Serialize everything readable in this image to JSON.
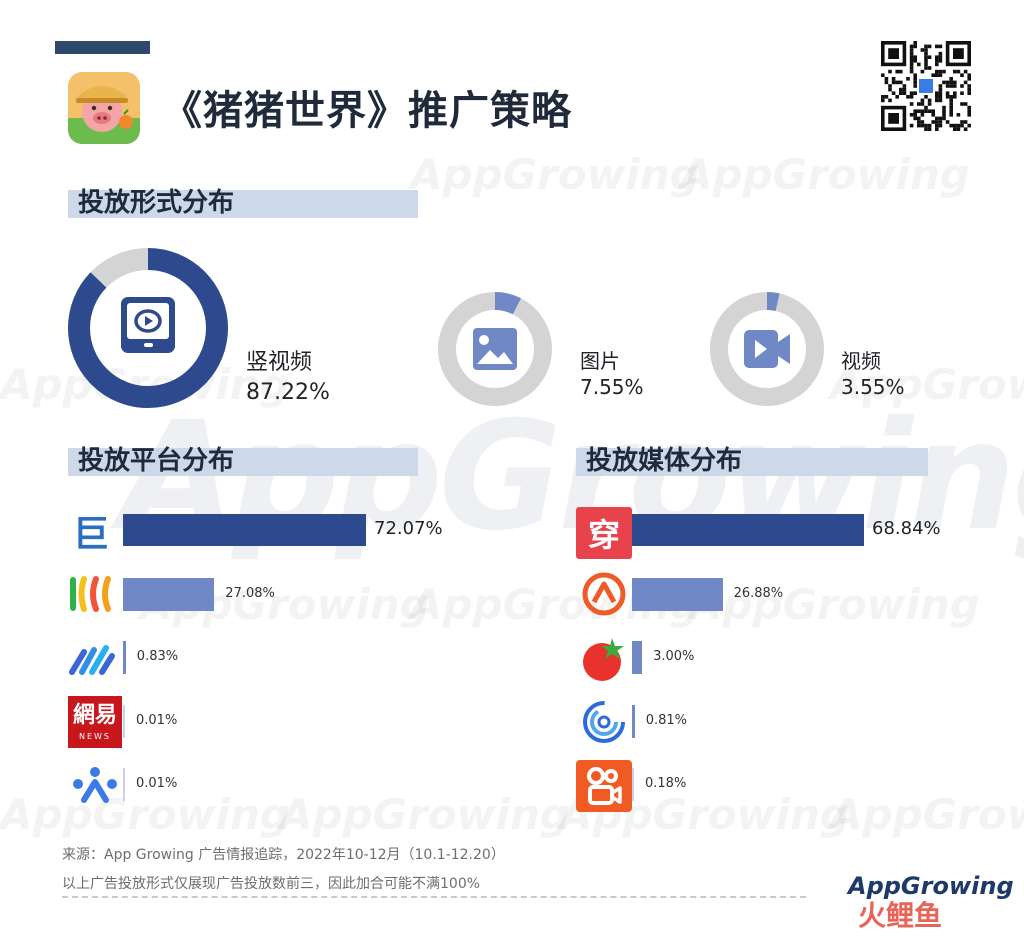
{
  "title": "《猪猪世界》推广策略",
  "watermark": "AppGrowing",
  "colors": {
    "dark_blue": "#2d4a8f",
    "light_blue": "#7089c6",
    "ring_grey": "#d4d4d4",
    "section_bar": "#cdd9e8"
  },
  "sections": {
    "format": "投放形式分布",
    "platform": "投放平台分布",
    "media": "投放媒体分布"
  },
  "chart_data": [
    {
      "type": "pie",
      "title": "投放形式分布",
      "categories": [
        "竖视频",
        "图片",
        "视频"
      ],
      "values": [
        87.22,
        7.55,
        3.55
      ],
      "labels": [
        "87.22%",
        "7.55%",
        "3.55%"
      ],
      "icons": [
        "tablet-video-icon",
        "image-icon",
        "video-camera-icon"
      ]
    },
    {
      "type": "bar",
      "orientation": "horizontal",
      "title": "投放平台分布",
      "categories": [
        "巨量引擎",
        "腾讯广告",
        "百度营销",
        "网易",
        "vivo"
      ],
      "values": [
        72.07,
        27.08,
        0.83,
        0.01,
        0.01
      ],
      "labels": [
        "72.07%",
        "27.08%",
        "0.83%",
        "0.01%",
        "0.01%"
      ],
      "icons": [
        "ocean-engine-logo",
        "tencent-ads-logo",
        "baidu-ads-logo",
        "netease-news-logo",
        "vivo-ads-logo"
      ],
      "xlim": [
        0,
        100
      ]
    },
    {
      "type": "bar",
      "orientation": "horizontal",
      "title": "投放媒体分布",
      "categories": [
        "穿山甲",
        "优量汇",
        "番茄小说",
        "百青藤",
        "快手"
      ],
      "values": [
        68.84,
        26.88,
        3.0,
        0.81,
        0.18
      ],
      "labels": [
        "68.84%",
        "26.88%",
        "3.00%",
        "0.81%",
        "0.18%"
      ],
      "icons": [
        "pangle-logo",
        "youlianghui-logo",
        "tomato-novel-logo",
        "baiqingteng-logo",
        "kuaishou-logo"
      ],
      "xlim": [
        0,
        100
      ]
    }
  ],
  "logo_text": {
    "juliang": "巨",
    "netease": "網易",
    "netease_sub": "NEWS",
    "chuanshanjia": "穿"
  },
  "footer": {
    "line1": "来源：App Growing 广告情报追踪，2022年10-12月（10.1-12.20）",
    "line2": "以上广告投放形式仅展现广告投放数前三，因此加合可能不满100%"
  },
  "brand": {
    "name": "AppGrowing",
    "corner": "火鲤鱼"
  }
}
